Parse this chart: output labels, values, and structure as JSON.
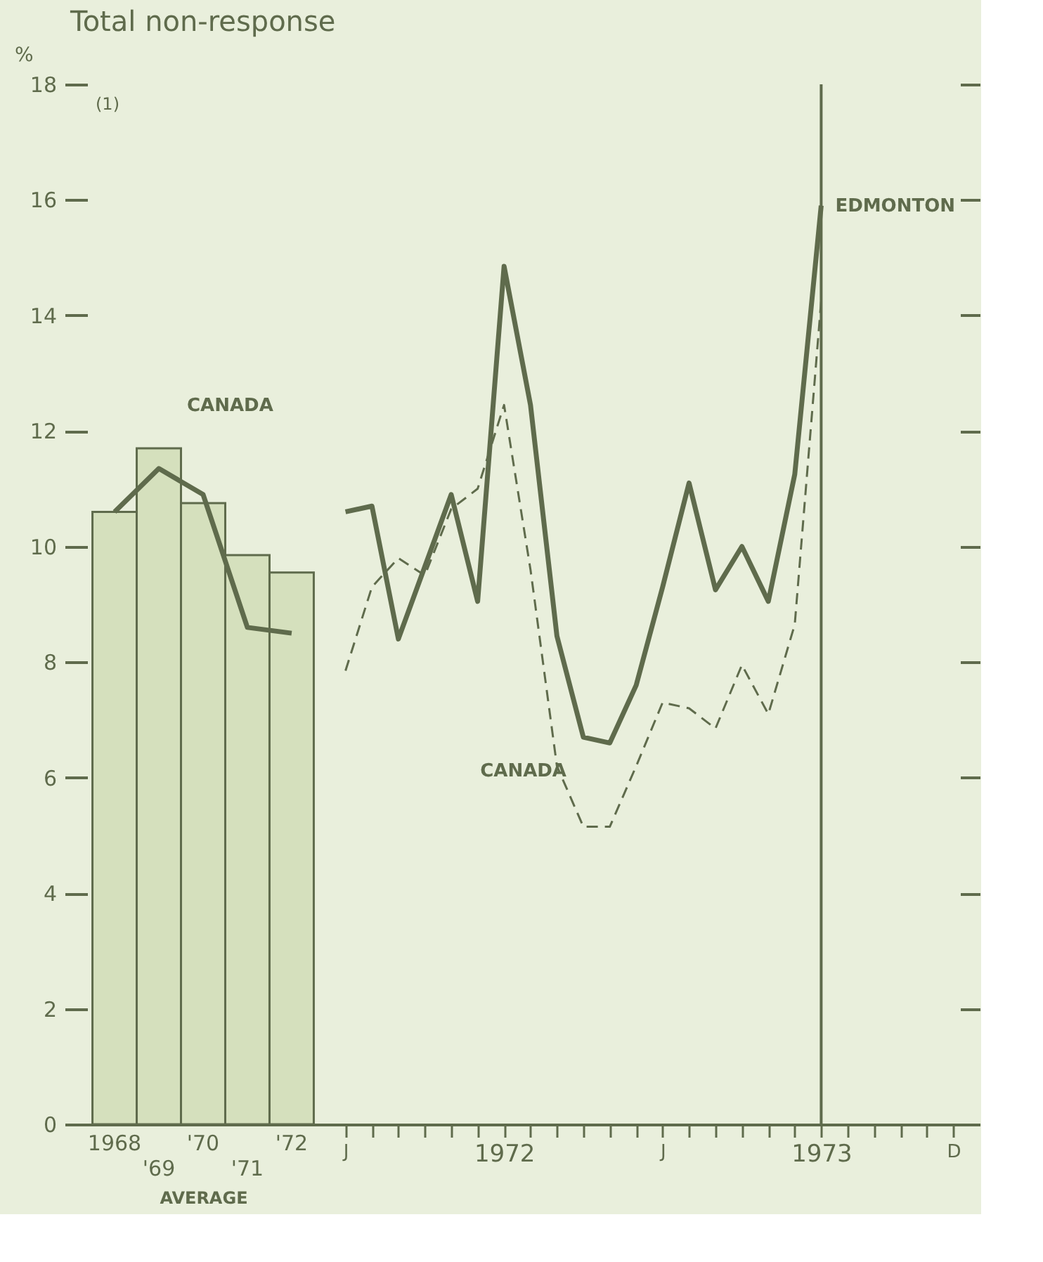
{
  "chart_data": [
    {
      "type": "bar",
      "title": "Total non-response",
      "ylabel": "%",
      "xlabel": "AVERAGE",
      "annotations": [
        "(1)"
      ],
      "categories": [
        "1968",
        "'69",
        "'70",
        "'71",
        "'72"
      ],
      "ylim": [
        0,
        18
      ],
      "yticks": [
        0,
        2,
        4,
        6,
        8,
        10,
        12,
        14,
        16,
        18
      ],
      "grid": false,
      "series": [
        {
          "color": "#d5e0bd",
          "values": [
            10.6,
            11.7,
            10.75,
            9.85,
            9.55
          ]
        },
        {
          "type": "line",
          "name": "CANADA",
          "color": "#5f6b4c",
          "values": [
            10.6,
            11.35,
            10.9,
            8.6,
            8.5
          ]
        }
      ]
    },
    {
      "type": "line",
      "x": [
        "1972-01",
        "1972-02",
        "1972-03",
        "1972-04",
        "1972-05",
        "1972-06",
        "1972-07",
        "1972-08",
        "1972-09",
        "1972-10",
        "1972-11",
        "1972-12",
        "1973-01",
        "1973-02",
        "1973-03",
        "1973-04",
        "1973-05",
        "1973-06",
        "1973-07"
      ],
      "xlim": [
        "1971-12",
        "1974-01"
      ],
      "xticks": [
        {
          "value": "1972-01",
          "label": "J"
        },
        {
          "value": "1972-02",
          "label": null
        },
        {
          "value": "1972-03",
          "label": null
        },
        {
          "value": "1972-04",
          "label": null
        },
        {
          "value": "1972-05",
          "label": null
        },
        {
          "value": "1972-06",
          "label": null
        },
        {
          "value": "1972-07",
          "label": "1972"
        },
        {
          "value": "1972-08",
          "label": null
        },
        {
          "value": "1972-09",
          "label": null
        },
        {
          "value": "1972-10",
          "label": null
        },
        {
          "value": "1972-11",
          "label": null
        },
        {
          "value": "1972-12",
          "label": null
        },
        {
          "value": "1973-01",
          "label": "J"
        },
        {
          "value": "1973-02",
          "label": null
        },
        {
          "value": "1973-03",
          "label": null
        },
        {
          "value": "1973-04",
          "label": null
        },
        {
          "value": "1973-05",
          "label": null
        },
        {
          "value": "1973-06",
          "label": null
        },
        {
          "value": "1973-07",
          "label": "1973"
        },
        {
          "value": "1973-08",
          "label": null
        },
        {
          "value": "1973-09",
          "label": null
        },
        {
          "value": "1973-10",
          "label": null
        },
        {
          "value": "1973-11",
          "label": null
        },
        {
          "value": "1973-12",
          "label": "D"
        }
      ],
      "ylim": [
        0,
        18
      ],
      "yticks": [
        {
          "value": 0,
          "label": null
        },
        {
          "value": 2,
          "label": null
        },
        {
          "value": 4,
          "label": null
        },
        {
          "value": 6,
          "label": null
        },
        {
          "value": 8,
          "label": null
        },
        {
          "value": 10,
          "label": null
        },
        {
          "value": 12,
          "label": null
        },
        {
          "value": 14,
          "label": null
        },
        {
          "value": 16,
          "label": null
        },
        {
          "value": 18,
          "label": null
        }
      ],
      "tick_labels": "x",
      "grid": false,
      "ref_lines": [
        {
          "axis": "x",
          "value": "1973-07",
          "color": "#5f6b4c"
        }
      ],
      "series": [
        {
          "name": "EDMONTON",
          "color": "#5f6b4c",
          "line_style": "solid",
          "values": [
            10.6,
            10.7,
            8.4,
            9.65,
            10.9,
            9.05,
            14.85,
            12.45,
            8.45,
            6.7,
            6.6,
            7.6,
            9.3,
            11.1,
            9.25,
            10.0,
            9.05,
            11.25,
            15.9
          ]
        },
        {
          "name": "CANADA",
          "color": "#5f6b4c",
          "line_style": "dashed",
          "values": [
            7.85,
            9.3,
            9.8,
            9.5,
            10.65,
            11.0,
            12.45,
            9.6,
            6.2,
            5.15,
            5.15,
            6.2,
            7.3,
            7.2,
            6.85,
            7.95,
            7.1,
            8.65,
            14.25
          ]
        }
      ]
    }
  ]
}
